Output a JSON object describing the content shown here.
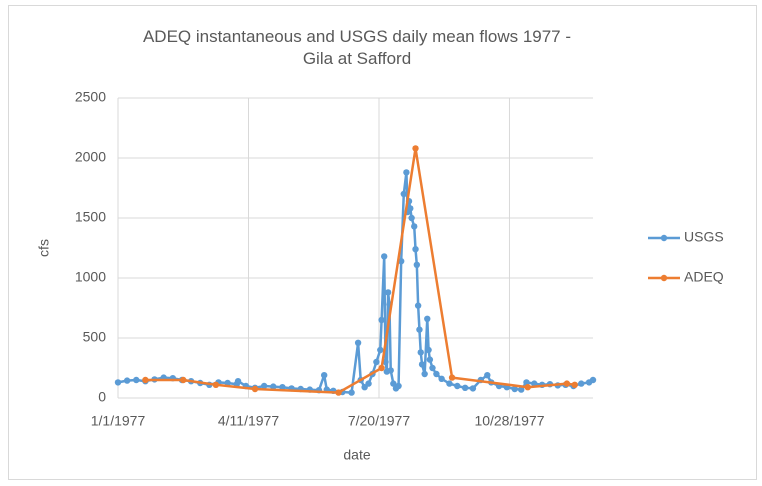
{
  "chart_data": {
    "type": "line",
    "title": "ADEQ instantaneous and USGS daily mean flows 1977 - Gila at Safford",
    "x_label": "date",
    "y_label": "cfs",
    "xlim": [
      "1/1/1977",
      "12/31/1977"
    ],
    "xticks": [
      "1/1/1977",
      "4/11/1977",
      "7/20/1977",
      "10/28/1977"
    ],
    "ylim": [
      0,
      2500
    ],
    "yticks": [
      0,
      500,
      1000,
      1500,
      2000,
      2500
    ],
    "grid": true,
    "legend": "right",
    "series": [
      {
        "name": "USGS",
        "color": "#5b9bd5",
        "x": [
          "1/1/1977",
          "1/8/1977",
          "1/15/1977",
          "1/22/1977",
          "1/29/1977",
          "2/5/1977",
          "2/12/1977",
          "2/19/1977",
          "2/26/1977",
          "3/5/1977",
          "3/12/1977",
          "3/19/1977",
          "3/26/1977",
          "4/2/1977",
          "4/3/1977",
          "4/9/1977",
          "4/16/1977",
          "4/23/1977",
          "4/30/1977",
          "5/7/1977",
          "5/14/1977",
          "5/21/1977",
          "5/28/1977",
          "6/4/1977",
          "6/8/1977",
          "6/10/1977",
          "6/15/1977",
          "6/22/1977",
          "6/29/1977",
          "7/4/1977",
          "7/6/1977",
          "7/9/1977",
          "7/12/1977",
          "7/15/1977",
          "7/18/1977",
          "7/21/1977",
          "7/22/1977",
          "7/24/1977",
          "7/25/1977",
          "7/26/1977",
          "7/27/1977",
          "7/28/1977",
          "7/29/1977",
          "7/31/1977",
          "8/2/1977",
          "8/4/1977",
          "8/6/1977",
          "8/8/1977",
          "8/10/1977",
          "8/11/1977",
          "8/12/1977",
          "8/13/1977",
          "8/14/1977",
          "8/16/1977",
          "8/17/1977",
          "8/18/1977",
          "8/19/1977",
          "8/20/1977",
          "8/21/1977",
          "8/22/1977",
          "8/24/1977",
          "8/26/1977",
          "8/27/1977",
          "8/28/1977",
          "8/30/1977",
          "9/2/1977",
          "9/6/1977",
          "9/12/1977",
          "9/18/1977",
          "9/24/1977",
          "9/30/1977",
          "10/6/1977",
          "10/11/1977",
          "10/14/1977",
          "10/20/1977",
          "10/26/1977",
          "11/1/1977",
          "11/6/1977",
          "11/10/1977",
          "11/16/1977",
          "11/22/1977",
          "11/28/1977",
          "12/4/1977",
          "12/10/1977",
          "12/16/1977",
          "12/22/1977",
          "12/28/1977",
          "12/31/1977"
        ],
        "values": [
          130,
          145,
          150,
          140,
          155,
          170,
          165,
          150,
          140,
          125,
          110,
          130,
          125,
          115,
          140,
          100,
          85,
          100,
          95,
          90,
          80,
          75,
          70,
          65,
          190,
          70,
          60,
          50,
          45,
          460,
          150,
          90,
          120,
          200,
          300,
          400,
          650,
          1180,
          300,
          220,
          880,
          780,
          230,
          120,
          80,
          100,
          1140,
          1700,
          1880,
          1550,
          1640,
          1580,
          1500,
          1430,
          1240,
          1110,
          770,
          570,
          380,
          280,
          200,
          660,
          400,
          320,
          250,
          200,
          160,
          120,
          100,
          85,
          80,
          150,
          190,
          130,
          100,
          90,
          75,
          70,
          130,
          120,
          110,
          115,
          105,
          110,
          100,
          120,
          130,
          150
        ]
      },
      {
        "name": "ADEQ",
        "color": "#ed7d31",
        "x": [
          "1/22/1977",
          "2/20/1977",
          "3/17/1977",
          "4/16/1977",
          "6/19/1977",
          "7/22/1977",
          "8/17/1977",
          "9/14/1977",
          "11/11/1977",
          "12/11/1977",
          "12/17/1977"
        ],
        "values": [
          150,
          150,
          110,
          75,
          45,
          250,
          2080,
          170,
          90,
          120,
          110
        ]
      }
    ]
  }
}
